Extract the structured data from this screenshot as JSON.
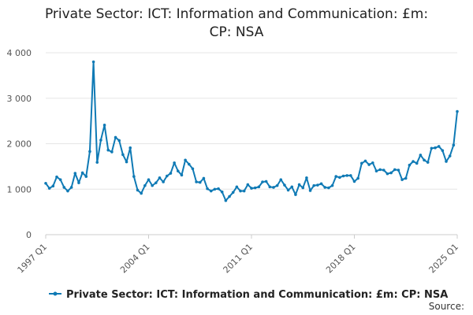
{
  "title_lines": [
    "Private Sector: ICT: Information and Communication: £m:",
    "CP: NSA"
  ],
  "source_label": "Source:",
  "colors": {
    "series": "#0f7ab5",
    "grid": "#e6e6e6",
    "axis": "#cccccc"
  },
  "chart_data": {
    "type": "line",
    "title": "Private Sector: ICT: Information and Communication: £m: CP: NSA",
    "xlabel": "",
    "ylabel": "",
    "x_start": "1997 Q1",
    "x_end": "2025 Q1",
    "x_tick_labels": [
      "1997 Q1",
      "2004 Q1",
      "2011 Q1",
      "2018 Q1",
      "2025 Q1"
    ],
    "y_ticks": [
      0,
      1000,
      2000,
      3000,
      4000
    ],
    "y_tick_labels": [
      "0",
      "1 000",
      "2 000",
      "3 000",
      "4 000"
    ],
    "ylim": [
      0,
      4000
    ],
    "grid": true,
    "legend": "bottom",
    "series": [
      {
        "name": "Private Sector: ICT: Information and Communication: £m: CP: NSA",
        "values": [
          1130,
          1020,
          1070,
          1270,
          1210,
          1040,
          960,
          1040,
          1350,
          1140,
          1360,
          1280,
          1830,
          3800,
          1590,
          2080,
          2410,
          1860,
          1820,
          2140,
          2070,
          1760,
          1600,
          1910,
          1280,
          980,
          910,
          1080,
          1210,
          1080,
          1140,
          1250,
          1160,
          1290,
          1350,
          1580,
          1400,
          1310,
          1640,
          1550,
          1450,
          1160,
          1150,
          1240,
          1010,
          960,
          1000,
          1010,
          940,
          750,
          840,
          930,
          1050,
          960,
          960,
          1100,
          1020,
          1030,
          1050,
          1160,
          1170,
          1050,
          1040,
          1080,
          1210,
          1090,
          980,
          1050,
          880,
          1100,
          1030,
          1250,
          970,
          1080,
          1090,
          1120,
          1040,
          1030,
          1080,
          1280,
          1260,
          1290,
          1300,
          1300,
          1170,
          1240,
          1570,
          1620,
          1540,
          1580,
          1400,
          1430,
          1420,
          1340,
          1360,
          1430,
          1420,
          1210,
          1240,
          1530,
          1610,
          1570,
          1750,
          1640,
          1590,
          1900,
          1910,
          1940,
          1850,
          1610,
          1730,
          1970,
          2710
        ]
      }
    ]
  }
}
